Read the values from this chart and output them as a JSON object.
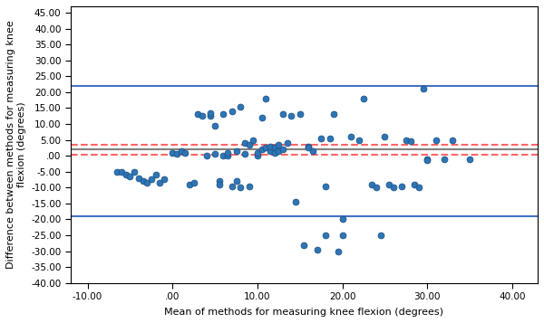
{
  "scatter_x": [
    -6.5,
    -6.0,
    -5.5,
    -5.0,
    -4.5,
    -4.0,
    -3.5,
    -3.0,
    -2.5,
    -2.0,
    -1.5,
    -1.0,
    0.0,
    0.5,
    1.0,
    1.5,
    2.0,
    2.5,
    3.0,
    3.5,
    4.0,
    4.5,
    4.5,
    5.0,
    5.0,
    5.5,
    5.5,
    6.0,
    6.0,
    6.5,
    6.5,
    7.0,
    7.0,
    7.5,
    7.5,
    8.0,
    8.0,
    8.5,
    8.5,
    9.0,
    9.0,
    9.5,
    10.0,
    10.0,
    10.5,
    10.5,
    11.0,
    11.0,
    11.5,
    11.5,
    12.0,
    12.0,
    12.5,
    12.5,
    13.0,
    13.0,
    13.5,
    14.0,
    14.5,
    15.0,
    15.5,
    16.0,
    16.0,
    16.5,
    17.0,
    17.5,
    18.0,
    18.0,
    18.5,
    19.0,
    19.5,
    20.0,
    20.0,
    21.0,
    22.0,
    22.5,
    23.5,
    24.0,
    24.5,
    25.0,
    25.5,
    26.0,
    27.0,
    27.5,
    28.0,
    28.5,
    29.0,
    29.5,
    30.0,
    30.0,
    31.0,
    32.0,
    33.0,
    35.0
  ],
  "scatter_y": [
    -5.0,
    -5.0,
    -6.0,
    -6.5,
    -5.0,
    -7.0,
    -8.0,
    -8.5,
    -7.5,
    -6.0,
    -8.5,
    -7.5,
    1.0,
    0.5,
    1.5,
    1.0,
    -9.0,
    -8.5,
    13.0,
    12.5,
    0.0,
    12.5,
    13.5,
    9.5,
    0.5,
    -8.0,
    -9.0,
    0.0,
    13.0,
    0.0,
    1.0,
    14.0,
    -9.5,
    -8.0,
    1.5,
    15.5,
    -10.0,
    4.0,
    0.5,
    3.5,
    -9.5,
    5.0,
    0.0,
    1.0,
    2.0,
    12.0,
    2.5,
    18.0,
    1.5,
    3.0,
    2.5,
    1.0,
    1.5,
    3.5,
    2.0,
    13.0,
    4.0,
    12.5,
    -14.5,
    13.0,
    -28.0,
    3.0,
    2.5,
    1.5,
    -29.5,
    5.5,
    -25.0,
    -9.5,
    5.5,
    13.0,
    -30.0,
    -25.0,
    -20.0,
    6.0,
    5.0,
    18.0,
    -9.0,
    -10.0,
    -25.0,
    6.0,
    -9.0,
    -10.0,
    -9.5,
    5.0,
    4.5,
    -9.0,
    -10.0,
    21.0,
    -1.0,
    -1.5,
    5.0,
    -1.0,
    5.0,
    -1.0
  ],
  "mean_line": 2.0,
  "upper_loa": 22.0,
  "lower_loa": -19.0,
  "upper_ci": 3.5,
  "lower_ci": 0.3,
  "xlim": [
    -12,
    43
  ],
  "ylim": [
    -40,
    47
  ],
  "xticks": [
    -10,
    0,
    10,
    20,
    30,
    40
  ],
  "yticks": [
    -40,
    -35,
    -30,
    -25,
    -20,
    -15,
    -10,
    -5,
    0,
    5,
    10,
    15,
    20,
    25,
    30,
    35,
    40,
    45
  ],
  "xlabel": "Mean of methods for measuring knee flexion (degrees)",
  "ylabel": "Difference between methods for measuring knee\nflexion (degrees)",
  "scatter_facecolor": "#2E75B6",
  "scatter_edgecolor": "#1a4f80",
  "mean_color": "#808080",
  "loa_color": "#4472C4",
  "ci_color": "#FF6666",
  "bg_color": "#ffffff"
}
